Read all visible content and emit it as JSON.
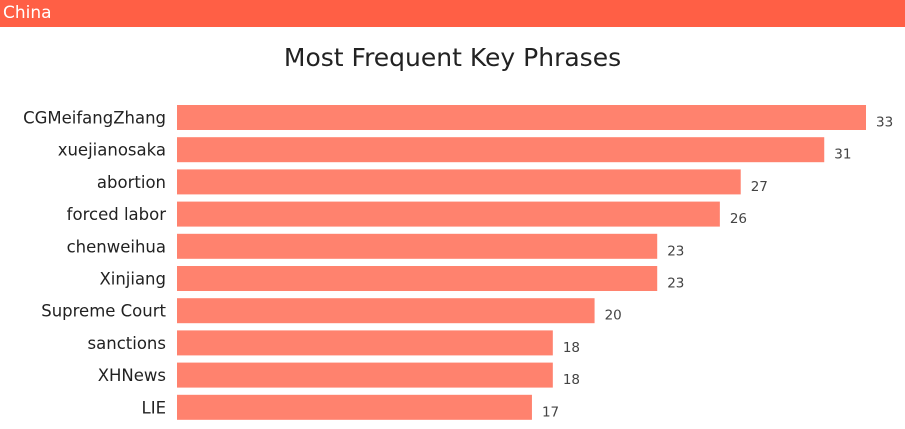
{
  "header": {
    "title": "China",
    "color": "#ff5f45"
  },
  "chart_data": {
    "type": "bar",
    "orientation": "horizontal",
    "title": "Most Frequent Key Phrases",
    "categories": [
      "CGMeifangZhang",
      "xuejianosaka",
      "abortion",
      "forced labor",
      "chenweihua",
      "Xinjiang",
      "Supreme Court",
      "sanctions",
      "XHNews",
      "LIE"
    ],
    "values": [
      33,
      31,
      27,
      26,
      23,
      23,
      20,
      18,
      18,
      17
    ],
    "xlim": [
      0,
      33
    ],
    "bar_color": "#ff826e",
    "grid": false,
    "xlabel": "",
    "ylabel": ""
  }
}
